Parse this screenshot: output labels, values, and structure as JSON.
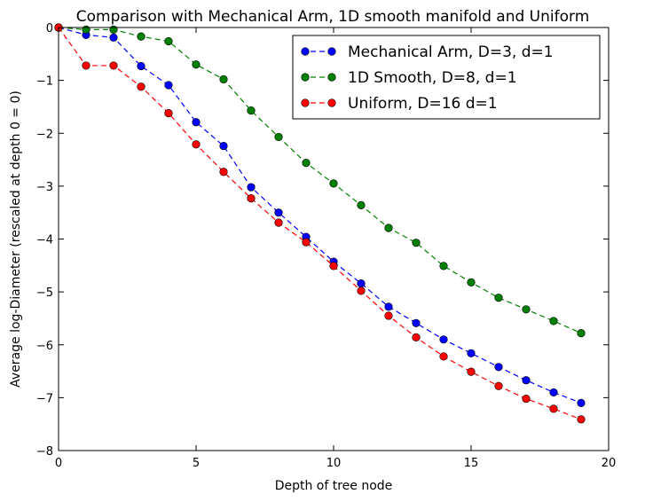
{
  "chart_data": {
    "type": "line",
    "title": "Comparison with Mechanical Arm, 1D smooth manifold and Uniform",
    "xlabel": "Depth of tree node",
    "ylabel": "Average log-Diameter (rescaled at depth 0 = 0)",
    "xlim": [
      0,
      20
    ],
    "ylim": [
      -8,
      0
    ],
    "xticks": [
      0,
      5,
      10,
      15,
      20
    ],
    "yticks": [
      0,
      -1,
      -2,
      -3,
      -4,
      -5,
      -6,
      -7,
      -8
    ],
    "xtick_labels": [
      "0",
      "5",
      "10",
      "15",
      "20"
    ],
    "ytick_labels": [
      "0",
      "−1",
      "−2",
      "−3",
      "−4",
      "−5",
      "−6",
      "−7",
      "−8"
    ],
    "grid": false,
    "legend_position": "top-right",
    "x": [
      0,
      1,
      2,
      3,
      4,
      5,
      6,
      7,
      8,
      9,
      10,
      11,
      12,
      13,
      14,
      15,
      16,
      17,
      18,
      19
    ],
    "series": [
      {
        "name": "Mechanical Arm, D=3, d=1",
        "color": "#0000ff",
        "values": [
          0.0,
          -0.14,
          -0.19,
          -0.73,
          -1.09,
          -1.79,
          -2.24,
          -3.02,
          -3.5,
          -3.96,
          -4.43,
          -4.84,
          -5.28,
          -5.59,
          -5.9,
          -6.16,
          -6.42,
          -6.67,
          -6.9,
          -7.1
        ]
      },
      {
        "name": "1D Smooth, D=8, d=1",
        "color": "#008000",
        "values": [
          0.0,
          -0.04,
          -0.04,
          -0.17,
          -0.26,
          -0.7,
          -0.98,
          -1.57,
          -2.07,
          -2.56,
          -2.95,
          -3.36,
          -3.79,
          -4.07,
          -4.51,
          -4.82,
          -5.11,
          -5.33,
          -5.55,
          -5.78
        ]
      },
      {
        "name": "Uniform, D=16 d=1",
        "color": "#ff0000",
        "values": [
          0.0,
          -0.72,
          -0.72,
          -1.12,
          -1.62,
          -2.21,
          -2.73,
          -3.23,
          -3.69,
          -4.06,
          -4.51,
          -4.98,
          -5.45,
          -5.86,
          -6.22,
          -6.51,
          -6.78,
          -7.02,
          -7.21,
          -7.41
        ]
      }
    ]
  }
}
